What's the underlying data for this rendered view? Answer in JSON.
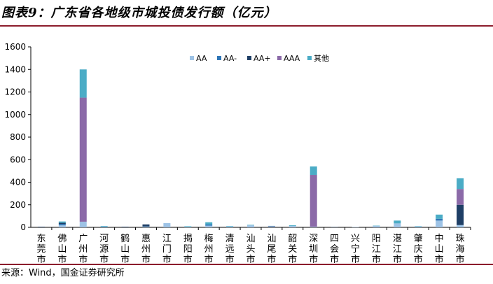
{
  "header": {
    "title": "图表9：广东省各地级市城投债发行额（亿元）"
  },
  "footer": {
    "source": "来源：Wind，国金证券研究所"
  },
  "colors": {
    "AA": "#9ec3e6",
    "AA-": "#2e75b6",
    "AA+": "#1f3f66",
    "AAA": "#8b6aa8",
    "其他": "#4bacc6",
    "axis": "#000000",
    "header_rule": "#8c1c2c"
  },
  "chart_data": {
    "type": "bar",
    "stacked": true,
    "title": "图表9：广东省各地级市城投债发行额（亿元）",
    "xlabel": "",
    "ylabel": "",
    "ylim": [
      0,
      1600
    ],
    "yticks": [
      0,
      200,
      400,
      600,
      800,
      1000,
      1200,
      1400,
      1600
    ],
    "grid": false,
    "legend_position": "top-right",
    "categories": [
      "东莞市",
      "佛山市",
      "广州市",
      "河源市",
      "鹤山市",
      "惠州市",
      "江门市",
      "揭阳市",
      "梅州市",
      "清远市",
      "汕头市",
      "汕尾市",
      "韶关市",
      "深圳市",
      "四会市",
      "兴宁市",
      "阳江市",
      "湛江市",
      "肇庆市",
      "中山市",
      "珠海市"
    ],
    "series": [
      {
        "name": "AA",
        "values": [
          0,
          18,
          50,
          4,
          0,
          5,
          38,
          5,
          15,
          8,
          18,
          4,
          12,
          5,
          0,
          3,
          12,
          35,
          4,
          60,
          20
        ]
      },
      {
        "name": "AA-",
        "values": [
          0,
          12,
          0,
          2,
          0,
          3,
          0,
          0,
          10,
          0,
          0,
          0,
          0,
          0,
          0,
          0,
          0,
          0,
          3,
          15,
          0
        ]
      },
      {
        "name": "AA+",
        "values": [
          5,
          10,
          0,
          0,
          5,
          18,
          0,
          0,
          0,
          0,
          0,
          3,
          0,
          0,
          3,
          0,
          0,
          0,
          0,
          0,
          180
        ]
      },
      {
        "name": "AAA",
        "values": [
          0,
          0,
          1100,
          0,
          0,
          0,
          0,
          0,
          0,
          0,
          0,
          4,
          0,
          460,
          0,
          0,
          0,
          0,
          0,
          0,
          140
        ]
      },
      {
        "name": "其他",
        "values": [
          0,
          12,
          250,
          5,
          0,
          0,
          0,
          5,
          20,
          4,
          4,
          2,
          6,
          75,
          0,
          0,
          3,
          25,
          3,
          38,
          95
        ]
      }
    ]
  }
}
